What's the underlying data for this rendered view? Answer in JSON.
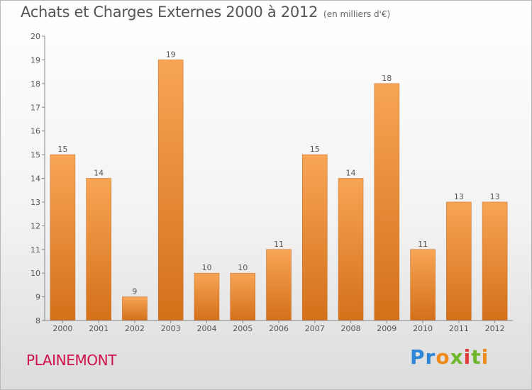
{
  "header": {
    "title": "Achats et Charges Externes 2000 à 2012",
    "unit": "(en milliers d'€)"
  },
  "footer": {
    "commune": "PLAINEMONT",
    "logo_text": "Proxiti"
  },
  "colors": {
    "bar_top": "#f7a555",
    "bar_bottom": "#d4701a",
    "commune": "#d0104a"
  },
  "chart_data": {
    "type": "bar",
    "title": "Achats et Charges Externes 2000 à 2012",
    "subtitle": "(en milliers d'€)",
    "xlabel": "",
    "ylabel": "",
    "categories": [
      "2000",
      "2001",
      "2002",
      "2003",
      "2004",
      "2005",
      "2006",
      "2007",
      "2008",
      "2009",
      "2010",
      "2011",
      "2012"
    ],
    "values": [
      15,
      14,
      9,
      19,
      10,
      10,
      11,
      15,
      14,
      18,
      11,
      13,
      13
    ],
    "data_labels": [
      "15",
      "14",
      "9",
      "19",
      "10",
      "10",
      "11",
      "15",
      "14",
      "18",
      "11",
      "13",
      "13"
    ],
    "yticks": [
      "8",
      "9",
      "10",
      "11",
      "12",
      "13",
      "14",
      "15",
      "16",
      "17",
      "18",
      "19",
      "20"
    ],
    "ylim": [
      8,
      20
    ],
    "grid": false,
    "legend": "none"
  }
}
